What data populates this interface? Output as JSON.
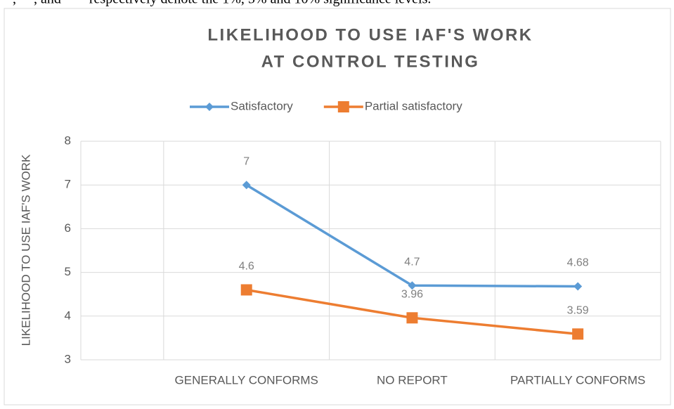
{
  "note": "*, **, and *** respectively denote the 1%, 5% and 10% significance levels.",
  "chart_data": {
    "type": "line",
    "title": [
      "LIKELIHOOD TO USE IAF'S WORK",
      "AT CONTROL TESTING"
    ],
    "y_label": "LIKELIHOOD TO USE IAF'S WORK",
    "categories": [
      null,
      "GENERALLY CONFORMS",
      "NO REPORT",
      "PARTIALLY CONFORMS"
    ],
    "series": [
      {
        "name": "Satisfactory",
        "color": "#5b9bd5",
        "marker": "diamond",
        "values": [
          null,
          7,
          4.7,
          4.68
        ]
      },
      {
        "name": "Partial satisfactory",
        "color": "#ed7d31",
        "marker": "square",
        "values": [
          null,
          4.6,
          3.96,
          3.59
        ]
      }
    ],
    "ylim": [
      3,
      8
    ],
    "yticks": [
      3,
      4,
      5,
      6,
      7,
      8
    ],
    "grid": true,
    "legend": "top"
  }
}
